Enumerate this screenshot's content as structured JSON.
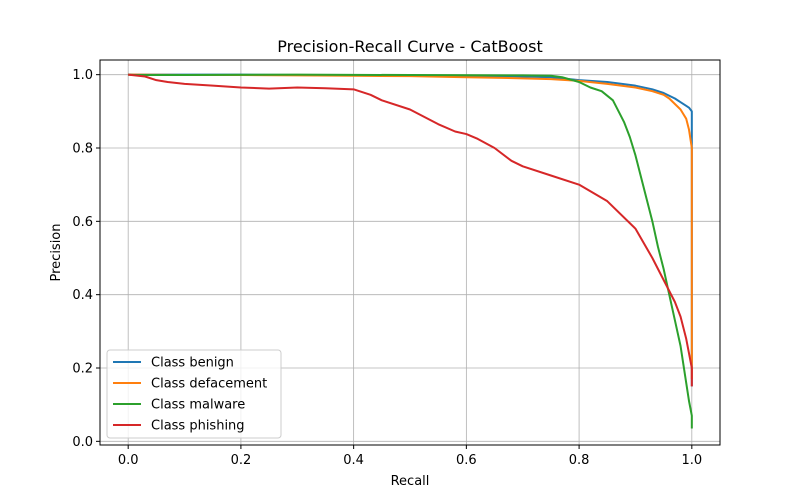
{
  "chart_data": {
    "type": "line",
    "title": "Precision-Recall Curve - CatBoost",
    "xlabel": "Recall",
    "ylabel": "Precision",
    "xlim": [
      -0.05,
      1.05
    ],
    "ylim": [
      -0.01,
      1.04
    ],
    "xticks": [
      "0.0",
      "0.2",
      "0.4",
      "0.6",
      "0.8",
      "1.0"
    ],
    "yticks": [
      "0.0",
      "0.2",
      "0.4",
      "0.6",
      "0.8",
      "1.0"
    ],
    "grid": true,
    "legend_position": "lower-left",
    "series": [
      {
        "name": "Class benign",
        "color": "#1f77b4",
        "x": [
          0.0,
          0.01,
          0.1,
          0.2,
          0.3,
          0.4,
          0.5,
          0.6,
          0.7,
          0.75,
          0.8,
          0.85,
          0.9,
          0.93,
          0.95,
          0.97,
          0.98,
          0.99,
          0.995,
          1.0,
          1.0,
          1.0
        ],
        "y": [
          1.0,
          1.0,
          1.0,
          1.0,
          0.999,
          0.998,
          0.998,
          0.997,
          0.995,
          0.993,
          0.985,
          0.98,
          0.97,
          0.96,
          0.95,
          0.935,
          0.925,
          0.915,
          0.91,
          0.9,
          0.8,
          0.15
        ]
      },
      {
        "name": "Class defacement",
        "color": "#ff7f0e",
        "x": [
          0.0,
          0.01,
          0.1,
          0.2,
          0.3,
          0.4,
          0.5,
          0.6,
          0.7,
          0.75,
          0.8,
          0.85,
          0.9,
          0.93,
          0.95,
          0.96,
          0.97,
          0.98,
          0.99,
          0.995,
          1.0,
          1.0,
          1.0
        ],
        "y": [
          1.0,
          1.0,
          0.999,
          0.999,
          0.998,
          0.997,
          0.996,
          0.993,
          0.99,
          0.988,
          0.983,
          0.975,
          0.965,
          0.955,
          0.945,
          0.935,
          0.92,
          0.905,
          0.88,
          0.85,
          0.8,
          0.5,
          0.17
        ]
      },
      {
        "name": "Class malware",
        "color": "#2ca02c",
        "x": [
          0.0,
          0.01,
          0.1,
          0.3,
          0.5,
          0.7,
          0.75,
          0.77,
          0.8,
          0.82,
          0.84,
          0.86,
          0.87,
          0.88,
          0.89,
          0.9,
          0.91,
          0.92,
          0.93,
          0.94,
          0.95,
          0.96,
          0.97,
          0.98,
          0.985,
          0.99,
          0.995,
          1.0,
          1.0
        ],
        "y": [
          1.0,
          0.999,
          0.999,
          1.0,
          0.999,
          0.998,
          0.997,
          0.993,
          0.98,
          0.965,
          0.955,
          0.93,
          0.9,
          0.87,
          0.83,
          0.78,
          0.72,
          0.66,
          0.6,
          0.53,
          0.47,
          0.4,
          0.33,
          0.26,
          0.21,
          0.16,
          0.11,
          0.07,
          0.035
        ]
      },
      {
        "name": "Class phishing",
        "color": "#d62728",
        "x": [
          0.0,
          0.03,
          0.05,
          0.07,
          0.1,
          0.15,
          0.2,
          0.25,
          0.3,
          0.35,
          0.4,
          0.43,
          0.45,
          0.5,
          0.55,
          0.58,
          0.6,
          0.62,
          0.65,
          0.68,
          0.7,
          0.75,
          0.8,
          0.85,
          0.9,
          0.93,
          0.95,
          0.97,
          0.98,
          0.99,
          1.0,
          1.0
        ],
        "y": [
          1.0,
          0.995,
          0.985,
          0.98,
          0.975,
          0.97,
          0.965,
          0.962,
          0.965,
          0.963,
          0.96,
          0.945,
          0.93,
          0.905,
          0.865,
          0.845,
          0.838,
          0.825,
          0.8,
          0.765,
          0.75,
          0.725,
          0.7,
          0.655,
          0.58,
          0.5,
          0.44,
          0.38,
          0.34,
          0.28,
          0.2,
          0.15
        ]
      }
    ]
  }
}
